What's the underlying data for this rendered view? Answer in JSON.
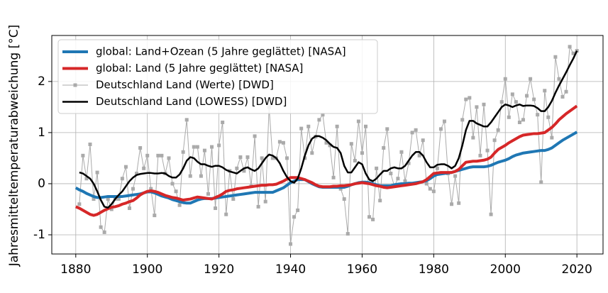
{
  "chart_data": {
    "type": "line",
    "ylabel": "Jahresmitteltemperaturabweichung [°C]",
    "x": [
      1880,
      1881,
      1882,
      1883,
      1884,
      1885,
      1886,
      1887,
      1888,
      1889,
      1890,
      1891,
      1892,
      1893,
      1894,
      1895,
      1896,
      1897,
      1898,
      1899,
      1900,
      1901,
      1902,
      1903,
      1904,
      1905,
      1906,
      1907,
      1908,
      1909,
      1910,
      1911,
      1912,
      1913,
      1914,
      1915,
      1916,
      1917,
      1918,
      1919,
      1920,
      1921,
      1922,
      1923,
      1924,
      1925,
      1926,
      1927,
      1928,
      1929,
      1930,
      1931,
      1932,
      1933,
      1934,
      1935,
      1936,
      1937,
      1938,
      1939,
      1940,
      1941,
      1942,
      1943,
      1944,
      1945,
      1946,
      1947,
      1948,
      1949,
      1950,
      1951,
      1952,
      1953,
      1954,
      1955,
      1956,
      1957,
      1958,
      1959,
      1960,
      1961,
      1962,
      1963,
      1964,
      1965,
      1966,
      1967,
      1968,
      1969,
      1970,
      1971,
      1972,
      1973,
      1974,
      1975,
      1976,
      1977,
      1978,
      1979,
      1980,
      1981,
      1982,
      1983,
      1984,
      1985,
      1986,
      1987,
      1988,
      1989,
      1990,
      1991,
      1992,
      1993,
      1994,
      1995,
      1996,
      1997,
      1998,
      1999,
      2000,
      2001,
      2002,
      2003,
      2004,
      2005,
      2006,
      2007,
      2008,
      2009,
      2010,
      2011,
      2012,
      2013,
      2014,
      2015,
      2016,
      2017,
      2018,
      2019,
      2020
    ],
    "series": [
      {
        "name": "global: Land+Ozean (5 Jahre geglättet) [NASA]",
        "color": "#1f77b4",
        "linewidth": 4,
        "values": [
          -0.08,
          -0.12,
          -0.15,
          -0.19,
          -0.22,
          -0.25,
          -0.27,
          -0.27,
          -0.26,
          -0.25,
          -0.25,
          -0.25,
          -0.25,
          -0.25,
          -0.24,
          -0.23,
          -0.22,
          -0.21,
          -0.2,
          -0.18,
          -0.16,
          -0.16,
          -0.18,
          -0.21,
          -0.24,
          -0.26,
          -0.28,
          -0.31,
          -0.33,
          -0.35,
          -0.37,
          -0.38,
          -0.38,
          -0.35,
          -0.32,
          -0.3,
          -0.29,
          -0.29,
          -0.29,
          -0.28,
          -0.27,
          -0.26,
          -0.25,
          -0.24,
          -0.23,
          -0.22,
          -0.21,
          -0.2,
          -0.19,
          -0.18,
          -0.17,
          -0.17,
          -0.17,
          -0.17,
          -0.17,
          -0.17,
          -0.14,
          -0.11,
          -0.08,
          -0.03,
          0.02,
          0.05,
          0.08,
          0.08,
          0.08,
          0.04,
          0.0,
          -0.03,
          -0.06,
          -0.07,
          -0.07,
          -0.07,
          -0.07,
          -0.07,
          -0.07,
          -0.07,
          -0.05,
          -0.02,
          0.0,
          0.02,
          0.03,
          0.03,
          0.02,
          0.0,
          -0.02,
          -0.04,
          -0.04,
          -0.04,
          -0.04,
          -0.02,
          -0.01,
          0.0,
          0.0,
          0.01,
          0.01,
          0.02,
          0.03,
          0.04,
          0.06,
          0.1,
          0.15,
          0.18,
          0.19,
          0.2,
          0.21,
          0.22,
          0.24,
          0.26,
          0.28,
          0.3,
          0.32,
          0.33,
          0.33,
          0.33,
          0.33,
          0.34,
          0.36,
          0.39,
          0.42,
          0.44,
          0.46,
          0.49,
          0.53,
          0.56,
          0.58,
          0.6,
          0.61,
          0.62,
          0.63,
          0.64,
          0.65,
          0.65,
          0.67,
          0.7,
          0.75,
          0.8,
          0.85,
          0.89,
          0.93,
          0.97,
          1.01
        ]
      },
      {
        "name": "global: Land (5 Jahre geglättet) [NASA]",
        "color": "#d62728",
        "linewidth": 4,
        "values": [
          -0.45,
          -0.48,
          -0.52,
          -0.56,
          -0.6,
          -0.62,
          -0.6,
          -0.56,
          -0.52,
          -0.49,
          -0.46,
          -0.45,
          -0.43,
          -0.4,
          -0.38,
          -0.35,
          -0.33,
          -0.28,
          -0.22,
          -0.18,
          -0.15,
          -0.14,
          -0.15,
          -0.17,
          -0.2,
          -0.23,
          -0.25,
          -0.27,
          -0.28,
          -0.3,
          -0.32,
          -0.31,
          -0.3,
          -0.28,
          -0.26,
          -0.27,
          -0.28,
          -0.29,
          -0.3,
          -0.27,
          -0.24,
          -0.2,
          -0.15,
          -0.13,
          -0.12,
          -0.1,
          -0.09,
          -0.08,
          -0.07,
          -0.06,
          -0.05,
          -0.04,
          -0.03,
          -0.03,
          -0.02,
          -0.02,
          -0.01,
          0.02,
          0.05,
          0.09,
          0.12,
          0.12,
          0.12,
          0.1,
          0.08,
          0.05,
          0.02,
          -0.02,
          -0.05,
          -0.06,
          -0.06,
          -0.06,
          -0.05,
          -0.05,
          -0.04,
          -0.04,
          -0.03,
          -0.02,
          0.0,
          0.01,
          0.02,
          0.01,
          0.0,
          -0.02,
          -0.04,
          -0.05,
          -0.07,
          -0.08,
          -0.07,
          -0.06,
          -0.05,
          -0.04,
          -0.03,
          -0.02,
          -0.01,
          0.0,
          0.02,
          0.04,
          0.08,
          0.14,
          0.2,
          0.21,
          0.22,
          0.22,
          0.22,
          0.22,
          0.24,
          0.28,
          0.35,
          0.42,
          0.43,
          0.44,
          0.44,
          0.45,
          0.46,
          0.48,
          0.52,
          0.6,
          0.67,
          0.71,
          0.75,
          0.8,
          0.84,
          0.88,
          0.92,
          0.95,
          0.96,
          0.97,
          0.98,
          0.98,
          0.99,
          1.0,
          1.05,
          1.1,
          1.17,
          1.25,
          1.31,
          1.37,
          1.42,
          1.47,
          1.52
        ]
      },
      {
        "name": "Deutschland Land (Werte) [DWD]",
        "color": "#aaaaaa",
        "linewidth": 1,
        "marker": "s",
        "values": [
          null,
          -0.4,
          0.55,
          0.1,
          0.77,
          -0.3,
          0.22,
          -0.85,
          -0.95,
          -0.3,
          -0.5,
          -0.3,
          -0.3,
          0.1,
          0.33,
          -0.48,
          -0.1,
          0.2,
          0.7,
          0.3,
          0.55,
          -0.1,
          -0.62,
          0.55,
          0.55,
          0.2,
          0.5,
          0.0,
          -0.15,
          -0.42,
          0.62,
          1.25,
          0.15,
          0.72,
          0.72,
          0.15,
          0.65,
          -0.2,
          0.72,
          -0.48,
          0.75,
          1.2,
          -0.6,
          0.25,
          -0.3,
          0.3,
          0.52,
          0.25,
          0.52,
          -0.05,
          0.93,
          -0.45,
          0.5,
          -0.35,
          1.5,
          0.5,
          0.5,
          0.82,
          0.8,
          0.5,
          -1.18,
          -0.65,
          -0.52,
          1.08,
          0.5,
          1.12,
          0.6,
          0.92,
          1.25,
          1.35,
          0.8,
          0.75,
          0.12,
          1.12,
          -0.1,
          -0.3,
          -0.98,
          0.78,
          0.45,
          1.22,
          0.6,
          1.12,
          -0.65,
          -0.7,
          0.3,
          -0.33,
          0.7,
          1.07,
          0.2,
          -0.05,
          0.1,
          0.62,
          0.05,
          0.4,
          1.0,
          1.05,
          0.55,
          0.85,
          0.0,
          -0.1,
          -0.15,
          0.3,
          1.07,
          1.22,
          0.2,
          -0.4,
          0.15,
          -0.38,
          1.25,
          1.65,
          1.68,
          0.9,
          1.5,
          0.55,
          1.55,
          0.65,
          -0.6,
          0.85,
          1.05,
          1.6,
          2.05,
          1.3,
          1.75,
          1.6,
          1.2,
          1.25,
          1.72,
          2.05,
          1.65,
          1.35,
          0.03,
          1.82,
          1.3,
          0.9,
          2.48,
          2.05,
          1.7,
          1.8,
          2.68,
          2.55,
          2.6
        ]
      },
      {
        "name": "Deutschland Land (LOWESS) [DWD]",
        "color": "#000000",
        "linewidth": 2.5,
        "values": [
          null,
          0.22,
          0.2,
          0.15,
          0.1,
          0.0,
          -0.15,
          -0.32,
          -0.45,
          -0.47,
          -0.4,
          -0.3,
          -0.22,
          -0.15,
          -0.05,
          0.05,
          0.12,
          0.17,
          0.19,
          0.2,
          0.21,
          0.21,
          0.2,
          0.2,
          0.21,
          0.2,
          0.15,
          0.12,
          0.12,
          0.18,
          0.3,
          0.45,
          0.52,
          0.5,
          0.43,
          0.38,
          0.38,
          0.35,
          0.33,
          0.35,
          0.35,
          0.32,
          0.27,
          0.24,
          0.22,
          0.2,
          0.25,
          0.3,
          0.32,
          0.28,
          0.25,
          0.3,
          0.4,
          0.5,
          0.57,
          0.55,
          0.5,
          0.4,
          0.25,
          0.13,
          0.05,
          0.02,
          0.1,
          0.3,
          0.55,
          0.75,
          0.88,
          0.93,
          0.93,
          0.9,
          0.85,
          0.78,
          0.72,
          0.7,
          0.6,
          0.35,
          0.22,
          0.22,
          0.32,
          0.42,
          0.38,
          0.2,
          0.08,
          0.05,
          0.1,
          0.18,
          0.25,
          0.25,
          0.3,
          0.32,
          0.3,
          0.3,
          0.35,
          0.45,
          0.55,
          0.62,
          0.62,
          0.55,
          0.42,
          0.32,
          0.32,
          0.37,
          0.38,
          0.38,
          0.35,
          0.3,
          0.35,
          0.5,
          0.75,
          1.05,
          1.23,
          1.23,
          1.18,
          1.15,
          1.12,
          1.12,
          1.2,
          1.3,
          1.4,
          1.5,
          1.55,
          1.53,
          1.5,
          1.53,
          1.55,
          1.52,
          1.53,
          1.53,
          1.52,
          1.48,
          1.42,
          1.42,
          1.5,
          1.62,
          1.78,
          1.92,
          2.05,
          2.18,
          2.32,
          2.45,
          2.6
        ]
      }
    ],
    "xlim": [
      1873.3,
      2027.3
    ],
    "ylim": [
      -1.375,
      2.9
    ],
    "xticks": [
      1880,
      1900,
      1920,
      1940,
      1960,
      1980,
      2000,
      2020
    ],
    "yticks": [
      -1,
      0,
      1,
      2
    ],
    "grid": true,
    "legend": "upper left"
  }
}
